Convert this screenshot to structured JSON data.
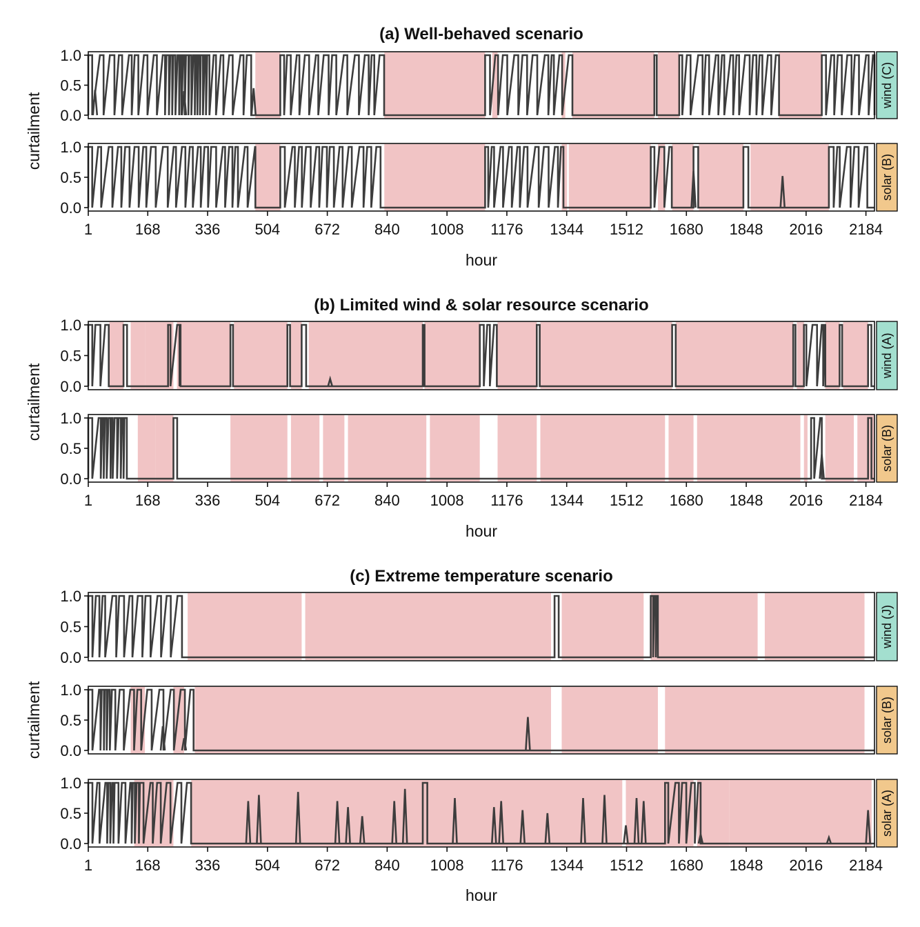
{
  "figure": {
    "background": "#ffffff",
    "shade_color": "#f1c4c5",
    "line_color": "#3d3d3d",
    "strip_colors": {
      "wind": "#a3dfcf",
      "solar": "#f1c88c"
    }
  },
  "chart_data": [
    {
      "type": "line",
      "title": "(a) Well-behaved scenario",
      "xlabel": "hour",
      "ylabel": "curtailment",
      "xlim": [
        1,
        2208
      ],
      "ylim": [
        0,
        1
      ],
      "xticks": [
        "1",
        "168",
        "336",
        "504",
        "672",
        "840",
        "1008",
        "1176",
        "1344",
        "1512",
        "1680",
        "1848",
        "2016",
        "2184"
      ],
      "yticks": [
        "0.0",
        "0.5",
        "1.0"
      ],
      "panels": [
        {
          "label": "wind (C)",
          "kind": "wind",
          "shaded_hours": [
            [
              470,
              540
            ],
            [
              832,
              1115
            ],
            [
              1135,
              1150
            ],
            [
              1330,
              1340
            ],
            [
              1360,
              1590
            ],
            [
              1600,
              1660
            ],
            [
              1940,
              2060
            ]
          ],
          "line_segments": [
            [
              1,
              470
            ],
            [
              540,
              832
            ],
            [
              1115,
              1360
            ],
            [
              1590,
              1600
            ],
            [
              1660,
              1940
            ],
            [
              2060,
              2208
            ]
          ],
          "dense_hours": [
            [
              200,
              330
            ]
          ],
          "spikes": [
            [
              20,
              0.42
            ],
            [
              270,
              0.4
            ],
            [
              465,
              0.45
            ]
          ]
        },
        {
          "label": "solar (B)",
          "kind": "solar",
          "shaded_hours": [
            [
              470,
              540
            ],
            [
              832,
              1115
            ],
            [
              1330,
              1345
            ],
            [
              1350,
              1580
            ],
            [
              1600,
              1620
            ],
            [
              1640,
              1700
            ],
            [
              1715,
              1840
            ],
            [
              1860,
              2080
            ]
          ],
          "line_segments": [
            [
              1,
              470
            ],
            [
              540,
              832
            ],
            [
              1115,
              1350
            ],
            [
              1580,
              1640
            ],
            [
              1700,
              1715
            ],
            [
              1840,
              1860
            ],
            [
              2080,
              2208
            ]
          ],
          "dense_hours": [],
          "spikes": [
            [
              1700,
              0.6
            ],
            [
              1950,
              0.52
            ]
          ]
        }
      ]
    },
    {
      "type": "line",
      "title": "(b) Limited wind & solar resource scenario",
      "xlabel": "hour",
      "ylabel": "curtailment",
      "xlim": [
        1,
        2208
      ],
      "ylim": [
        0,
        1
      ],
      "xticks": [
        "1",
        "168",
        "336",
        "504",
        "672",
        "840",
        "1008",
        "1176",
        "1344",
        "1512",
        "1680",
        "1848",
        "2016",
        "2184"
      ],
      "yticks": [
        "0.0",
        "0.5",
        "1.0"
      ],
      "panels": [
        {
          "label": "wind (A)",
          "kind": "wind",
          "shaded_hours": [
            [
              60,
              100
            ],
            [
              120,
              160
            ],
            [
              160,
              240
            ],
            [
              250,
              400
            ],
            [
              410,
              560
            ],
            [
              570,
              600
            ],
            [
              620,
              940
            ],
            [
              945,
              1100
            ],
            [
              1150,
              1260
            ],
            [
              1270,
              1640
            ],
            [
              1650,
              1980
            ],
            [
              1990,
              2010
            ],
            [
              2070,
              2110
            ],
            [
              2120,
              2190
            ]
          ],
          "line_segments": [
            [
              1,
              60
            ],
            [
              100,
              120
            ],
            [
              225,
              260
            ],
            [
              400,
              410
            ],
            [
              560,
              570
            ],
            [
              600,
              620
            ],
            [
              940,
              945
            ],
            [
              1100,
              1150
            ],
            [
              1260,
              1270
            ],
            [
              1640,
              1650
            ],
            [
              1980,
              1990
            ],
            [
              2010,
              2070
            ],
            [
              2110,
              2120
            ],
            [
              2190,
              2208
            ]
          ],
          "dense_hours": [
            [
              240,
              270
            ],
            [
              2040,
              2070
            ]
          ],
          "spikes": [
            [
              680,
              0.12
            ]
          ]
        },
        {
          "label": "solar (B)",
          "kind": "solar",
          "shaded_hours": [
            [
              140,
              190
            ],
            [
              190,
              240
            ],
            [
              400,
              560
            ],
            [
              570,
              650
            ],
            [
              660,
              720
            ],
            [
              730,
              950
            ],
            [
              960,
              1100
            ],
            [
              1150,
              1260
            ],
            [
              1270,
              1620
            ],
            [
              1630,
              1700
            ],
            [
              1710,
              2000
            ],
            [
              2010,
              2020
            ],
            [
              2070,
              2150
            ],
            [
              2160,
              2208
            ]
          ],
          "line_segments": [
            [
              1,
              110
            ],
            [
              240,
              255
            ],
            [
              2030,
              2060
            ],
            [
              2190,
              2200
            ]
          ],
          "dense_hours": [
            [
              10,
              110
            ]
          ],
          "spikes": [
            [
              2060,
              0.4
            ]
          ]
        }
      ]
    },
    {
      "type": "line",
      "title": "(c) Extreme temperature scenario",
      "xlabel": "hour",
      "ylabel": "curtailment",
      "xlim": [
        1,
        2208
      ],
      "ylim": [
        0,
        1
      ],
      "xticks": [
        "1",
        "168",
        "336",
        "504",
        "672",
        "840",
        "1008",
        "1176",
        "1344",
        "1512",
        "1680",
        "1848",
        "2016",
        "2184"
      ],
      "yticks": [
        "0.0",
        "0.5",
        "1.0"
      ],
      "panels": [
        {
          "label": "wind (J)",
          "kind": "wind",
          "shaded_hours": [
            [
              280,
              600
            ],
            [
              610,
              1300
            ],
            [
              1330,
              1560
            ],
            [
              1580,
              1880
            ],
            [
              1900,
              2180
            ]
          ],
          "line_segments": [
            [
              1,
              280
            ],
            [
              1310,
              1325
            ],
            [
              1580,
              1600
            ]
          ],
          "dense_hours": [
            [
              1580,
              1600
            ]
          ],
          "spikes": []
        },
        {
          "label": "solar (B)",
          "kind": "solar",
          "shaded_hours": [
            [
              120,
              160
            ],
            [
              240,
              270
            ],
            [
              300,
              1300
            ],
            [
              1330,
              1600
            ],
            [
              1620,
              2180
            ]
          ],
          "line_segments": [
            [
              1,
              300
            ]
          ],
          "dense_hours": [
            [
              30,
              60
            ]
          ],
          "spikes": [
            [
              1235,
              0.55
            ],
            [
              270,
              0.2
            ],
            [
              210,
              0.4
            ]
          ]
        },
        {
          "label": "solar (A)",
          "kind": "solar",
          "shaded_hours": [
            [
              130,
              240
            ],
            [
              290,
              1500
            ],
            [
              1510,
              1700
            ],
            [
              1710,
              1800
            ],
            [
              1800,
              2200
            ]
          ],
          "line_segments": [
            [
              1,
              300
            ],
            [
              940,
              960
            ],
            [
              1620,
              1720
            ]
          ],
          "dense_hours": [
            [
              40,
              70
            ],
            [
              110,
              140
            ]
          ],
          "spikes": [
            [
              450,
              0.7
            ],
            [
              480,
              0.8
            ],
            [
              590,
              0.85
            ],
            [
              700,
              0.7
            ],
            [
              730,
              0.6
            ],
            [
              770,
              0.45
            ],
            [
              860,
              0.7
            ],
            [
              890,
              0.9
            ],
            [
              1030,
              0.75
            ],
            [
              1140,
              0.6
            ],
            [
              1160,
              0.7
            ],
            [
              1220,
              0.55
            ],
            [
              1290,
              0.5
            ],
            [
              1390,
              0.75
            ],
            [
              1450,
              0.8
            ],
            [
              1510,
              0.3
            ],
            [
              1540,
              0.75
            ],
            [
              1560,
              0.7
            ],
            [
              1720,
              0.15
            ],
            [
              2080,
              0.1
            ],
            [
              2190,
              0.55
            ]
          ]
        }
      ]
    }
  ]
}
